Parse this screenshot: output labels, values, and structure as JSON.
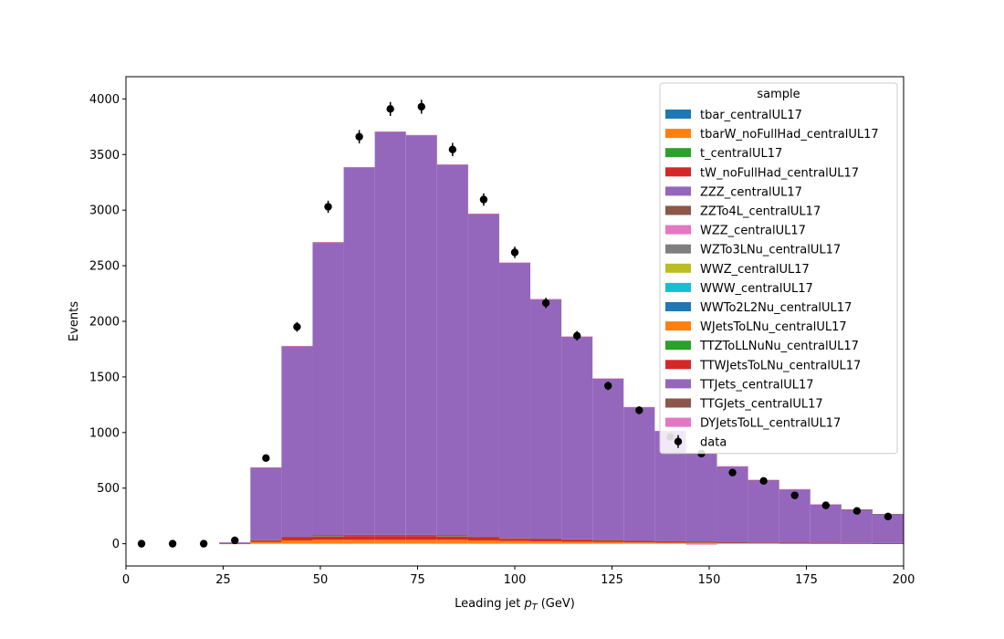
{
  "chart_data": {
    "type": "bar",
    "stacked": true,
    "xlabel": "Leading jet  p_T (GeV)",
    "ylabel": "Events",
    "xlim": [
      0,
      200
    ],
    "ylim": [
      -200,
      4200
    ],
    "xticks": [
      0,
      25,
      50,
      75,
      100,
      125,
      150,
      175,
      200
    ],
    "yticks": [
      0,
      500,
      1000,
      1500,
      2000,
      2500,
      3000,
      3500,
      4000
    ],
    "grid": false,
    "legend": {
      "title": "sample",
      "placement": "top-right"
    },
    "bin_edges": [
      0,
      8,
      16,
      24,
      32,
      40,
      48,
      56,
      64,
      72,
      80,
      88,
      96,
      104,
      112,
      120,
      128,
      136,
      144,
      152,
      160,
      168,
      176,
      184,
      192,
      200
    ],
    "series": [
      {
        "name": "tbar_centralUL17",
        "color": "#1f77b4",
        "values": [
          0,
          0,
          0,
          0,
          0,
          0,
          0,
          0,
          0,
          0,
          0,
          0,
          0,
          0,
          0,
          0,
          0,
          0,
          0,
          0,
          0,
          0,
          0,
          0,
          0
        ]
      },
      {
        "name": "tbarW_noFullHad_centralUL17",
        "color": "#ff7f0e",
        "values": [
          0,
          0,
          0,
          1,
          15,
          30,
          35,
          35,
          35,
          35,
          35,
          30,
          25,
          22,
          18,
          15,
          12,
          10,
          8,
          6,
          5,
          4,
          3,
          3,
          2
        ]
      },
      {
        "name": "t_centralUL17",
        "color": "#2ca02c",
        "values": [
          0,
          0,
          0,
          0,
          0,
          0,
          0,
          0,
          0,
          0,
          0,
          0,
          0,
          0,
          0,
          0,
          0,
          0,
          0,
          0,
          0,
          0,
          0,
          0,
          0
        ]
      },
      {
        "name": "tW_noFullHad_centralUL17",
        "color": "#d62728",
        "values": [
          0,
          0,
          0,
          1,
          12,
          25,
          30,
          35,
          35,
          35,
          30,
          25,
          20,
          18,
          15,
          12,
          10,
          8,
          6,
          5,
          4,
          3,
          3,
          2,
          2
        ]
      },
      {
        "name": "ZZZ_centralUL17",
        "color": "#9467bd",
        "values": [
          0,
          0,
          0,
          0,
          0,
          0,
          0,
          0,
          0,
          0,
          0,
          0,
          0,
          0,
          0,
          0,
          0,
          0,
          0,
          0,
          0,
          0,
          0,
          0,
          0
        ]
      },
      {
        "name": "ZZTo4L_centralUL17",
        "color": "#8c564b",
        "values": [
          0,
          0,
          0,
          0,
          0,
          0,
          0,
          0,
          0,
          0,
          0,
          0,
          0,
          0,
          0,
          0,
          0,
          0,
          0,
          0,
          0,
          0,
          0,
          0,
          0
        ]
      },
      {
        "name": "WZZ_centralUL17",
        "color": "#e377c2",
        "values": [
          0,
          0,
          0,
          0,
          0,
          0,
          0,
          0,
          0,
          0,
          0,
          0,
          0,
          0,
          0,
          0,
          0,
          0,
          0,
          0,
          0,
          0,
          0,
          0,
          0
        ]
      },
      {
        "name": "WZTo3LNu_centralUL17",
        "color": "#7f7f7f",
        "values": [
          0,
          0,
          0,
          0,
          0,
          0,
          0,
          0,
          0,
          0,
          0,
          0,
          0,
          0,
          0,
          0,
          0,
          0,
          0,
          0,
          0,
          0,
          0,
          0,
          0
        ]
      },
      {
        "name": "WWZ_centralUL17",
        "color": "#bcbd22",
        "values": [
          0,
          0,
          0,
          0,
          0,
          0,
          0,
          0,
          0,
          0,
          0,
          0,
          0,
          0,
          0,
          0,
          0,
          0,
          0,
          0,
          0,
          0,
          0,
          0,
          0
        ]
      },
      {
        "name": "WWW_centralUL17",
        "color": "#17becf",
        "values": [
          0,
          0,
          0,
          0,
          0,
          0,
          0,
          0,
          0,
          0,
          0,
          0,
          0,
          0,
          0,
          0,
          0,
          0,
          0,
          0,
          0,
          0,
          0,
          0,
          0
        ]
      },
      {
        "name": "WWTo2L2Nu_centralUL17",
        "color": "#1f77b4",
        "values": [
          0,
          0,
          0,
          0,
          0,
          0,
          0,
          0,
          0,
          0,
          0,
          0,
          0,
          0,
          0,
          0,
          0,
          0,
          0,
          0,
          0,
          0,
          0,
          0,
          0
        ]
      },
      {
        "name": "WJetsToLNu_centralUL17",
        "color": "#ff7f0e",
        "values": [
          0,
          0,
          0,
          0,
          0,
          0,
          0,
          0,
          0,
          0,
          0,
          0,
          0,
          0,
          0,
          0,
          0,
          0,
          0,
          0,
          0,
          0,
          0,
          0,
          0
        ]
      },
      {
        "name": "TTZToLLNuNu_centralUL17",
        "color": "#2ca02c",
        "values": [
          0,
          0,
          0,
          0,
          2,
          4,
          5,
          5,
          5,
          5,
          5,
          4,
          4,
          3,
          3,
          3,
          2,
          2,
          2,
          1,
          1,
          1,
          1,
          1,
          1
        ]
      },
      {
        "name": "TTWJetsToLNu_centralUL17",
        "color": "#d62728",
        "values": [
          0,
          0,
          0,
          0,
          2,
          4,
          5,
          5,
          5,
          5,
          5,
          4,
          4,
          3,
          3,
          3,
          2,
          2,
          2,
          1,
          1,
          1,
          1,
          1,
          1
        ]
      },
      {
        "name": "TTJets_centralUL17",
        "color": "#9467bd",
        "values": [
          0,
          0,
          0,
          10,
          650,
          1710,
          2630,
          3300,
          3620,
          3590,
          3330,
          2900,
          2470,
          2150,
          1820,
          1450,
          1200,
          990,
          790,
          680,
          560,
          480,
          345,
          300,
          260
        ]
      },
      {
        "name": "TTGJets_centralUL17",
        "color": "#8c564b",
        "values": [
          0,
          0,
          0,
          0,
          3,
          4,
          5,
          5,
          5,
          5,
          5,
          4,
          4,
          3,
          3,
          3,
          2,
          2,
          2,
          2,
          1,
          1,
          1,
          1,
          1
        ]
      },
      {
        "name": "DYJetsToLL_centralUL17",
        "color": "#e377c2",
        "values": [
          0,
          0,
          0,
          0,
          3,
          2,
          3,
          2,
          2,
          1,
          1,
          2,
          2,
          1,
          2,
          1,
          2,
          1,
          -8,
          2,
          3,
          1,
          1,
          0,
          0
        ]
      }
    ],
    "data_points": {
      "name": "data",
      "color": "#000000",
      "x": [
        4,
        12,
        20,
        28,
        36,
        44,
        52,
        60,
        68,
        76,
        84,
        92,
        100,
        108,
        116,
        124,
        132,
        140,
        148,
        156,
        164,
        172,
        180,
        188,
        196
      ],
      "y": [
        0,
        0,
        0,
        30,
        770,
        1950,
        3030,
        3660,
        3910,
        3930,
        3545,
        3095,
        2620,
        2165,
        1870,
        1420,
        1200,
        960,
        810,
        640,
        565,
        435,
        345,
        295,
        245
      ],
      "err": [
        0,
        0,
        0,
        6,
        28,
        44,
        55,
        60,
        63,
        63,
        60,
        56,
        51,
        47,
        43,
        38,
        35,
        31,
        28,
        25,
        24,
        21,
        19,
        17,
        16
      ]
    }
  }
}
